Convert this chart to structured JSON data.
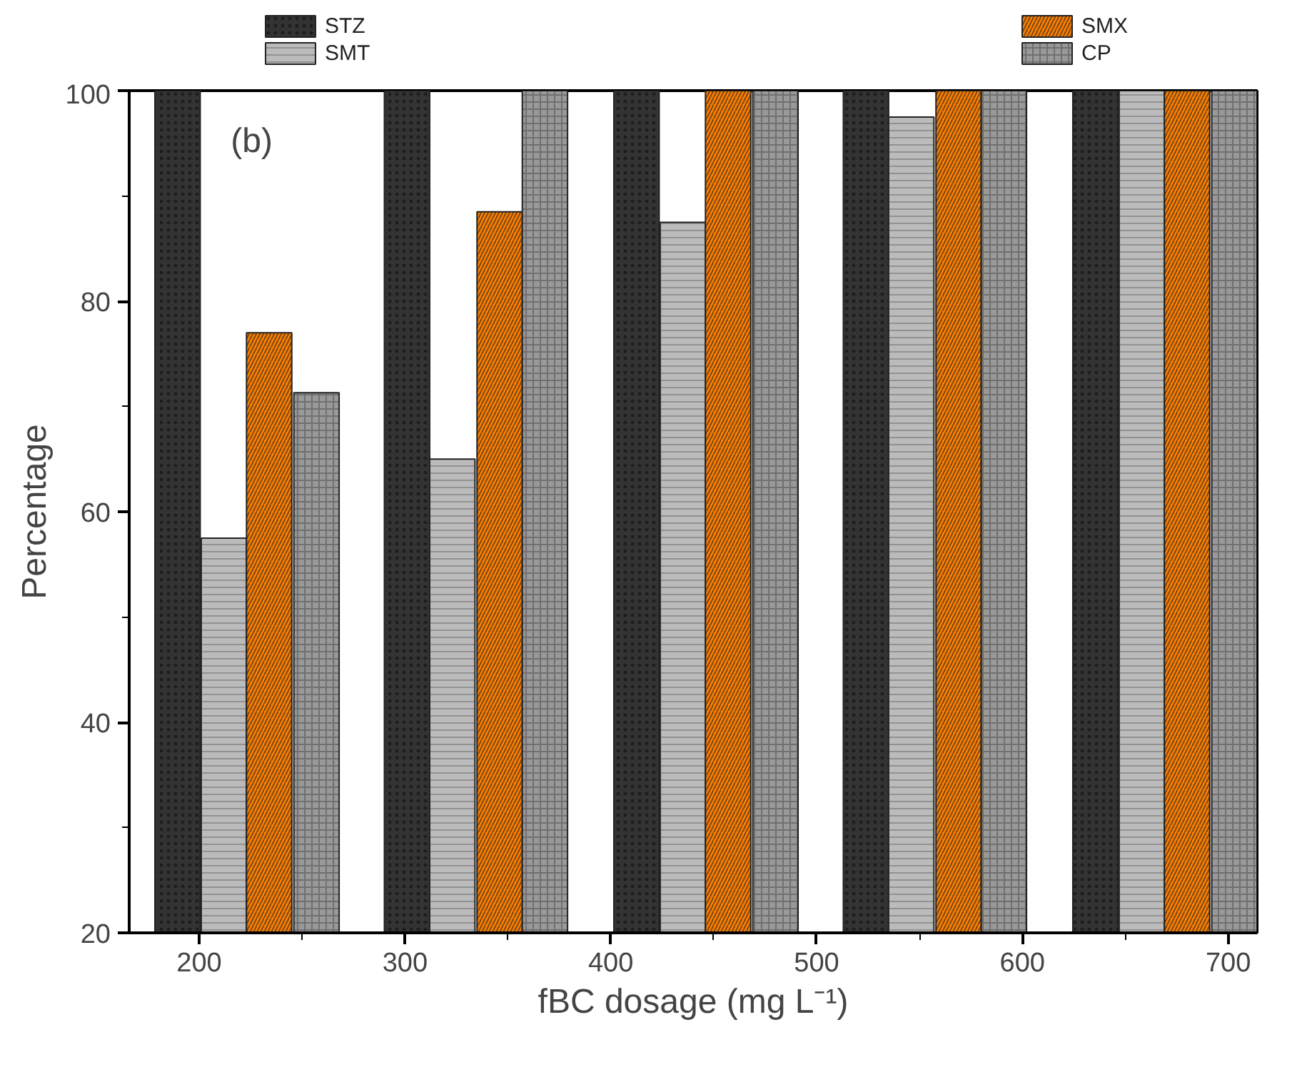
{
  "chart_data": {
    "type": "bar",
    "xlabel": "fBC dosage (mg L⁻¹)",
    "ylabel": "Percentage",
    "annotations": [
      "(b)"
    ],
    "xlim": [
      166,
      714
    ],
    "xticks": [
      200,
      300,
      400,
      500,
      600,
      700
    ],
    "ylim": [
      20,
      100
    ],
    "yticks": [
      20,
      40,
      60,
      80,
      100
    ],
    "legend": "top",
    "grid": false,
    "series": [
      {
        "name": "STZ",
        "color": "#333333",
        "x": [
          189.5,
          301,
          412.5,
          524,
          635.5
        ],
        "values": [
          100,
          100,
          100,
          100,
          100
        ]
      },
      {
        "name": "SMT",
        "color": "#bbbbbb",
        "x": [
          212,
          323,
          435,
          546,
          658
        ],
        "values": [
          57.5,
          65,
          87.5,
          97.5,
          100
        ]
      },
      {
        "name": "SMX",
        "color": "#ff8000",
        "x": [
          234,
          346,
          457,
          569,
          680
        ],
        "values": [
          77,
          88.5,
          100,
          100,
          100
        ]
      },
      {
        "name": "CP",
        "color": "#999999",
        "x": [
          257,
          368,
          480,
          591,
          703
        ],
        "values": [
          71.3,
          100,
          100,
          100,
          100
        ]
      }
    ]
  }
}
